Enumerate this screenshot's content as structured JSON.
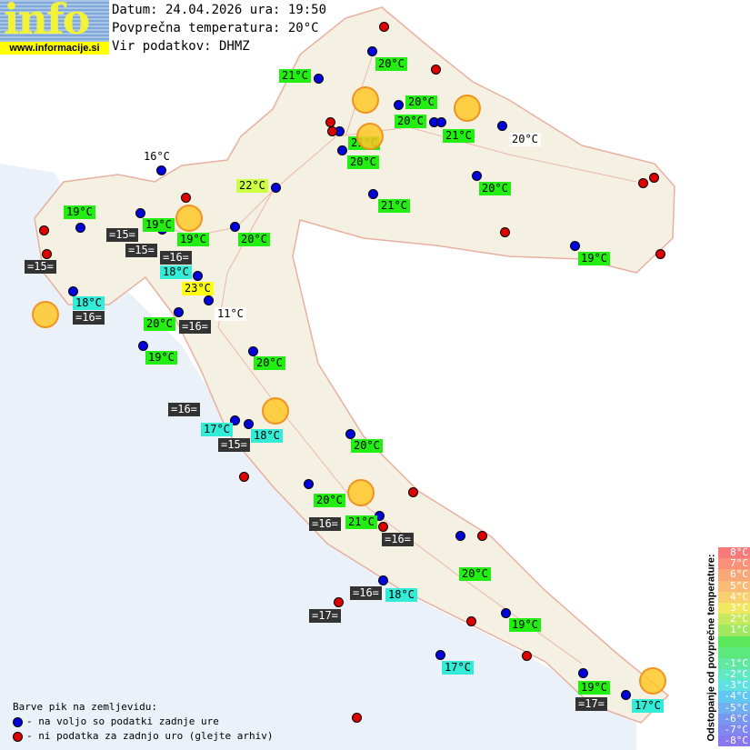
{
  "logo": {
    "word": "info",
    "url": "www.informacije.si"
  },
  "header": {
    "date_line": "Datum: 24.04.2026 ura: 19:50",
    "avg_line": "Povprečna temperatura: 20°C",
    "source_line": "Vir podatkov: DHMZ"
  },
  "colors": {
    "green": "#22ee11",
    "cyan": "#33ecd8",
    "yellow": "#ffff11",
    "archive": "#333333",
    "dot_blue": "#0000dd",
    "dot_red": "#dd0000",
    "sun": "#ffc828"
  },
  "stations": [
    {
      "label": "21°C",
      "kind": "green"
    },
    {
      "label": "20°C",
      "kind": "green"
    },
    {
      "label": "20°C",
      "kind": "green"
    },
    {
      "label": "20°C",
      "kind": "green"
    },
    {
      "label": "21°C",
      "kind": "green"
    },
    {
      "label": "21°C",
      "kind": "green"
    },
    {
      "label": "20°C",
      "kind": "green"
    },
    {
      "label": "20°C",
      "kind": "plain"
    },
    {
      "label": "16°C",
      "kind": "plain"
    },
    {
      "label": "22°C",
      "kind": "lime"
    },
    {
      "label": "21°C",
      "kind": "green"
    },
    {
      "label": "20°C",
      "kind": "green"
    },
    {
      "label": "19°C",
      "kind": "green"
    },
    {
      "label": "19°C",
      "kind": "green"
    },
    {
      "label": "=15=",
      "kind": "dark"
    },
    {
      "label": "=15=",
      "kind": "dark"
    },
    {
      "label": "19°C",
      "kind": "green"
    },
    {
      "label": "18°C",
      "kind": "cyan"
    },
    {
      "label": "=16=",
      "kind": "dark"
    },
    {
      "label": "20°C",
      "kind": "green"
    },
    {
      "label": "=15=",
      "kind": "dark"
    },
    {
      "label": "19°C",
      "kind": "green"
    },
    {
      "label": "23°C",
      "kind": "yellow"
    },
    {
      "label": "18°C",
      "kind": "cyan"
    },
    {
      "label": "=16=",
      "kind": "dark"
    },
    {
      "label": "11°C",
      "kind": "plain"
    },
    {
      "label": "20°C",
      "kind": "green"
    },
    {
      "label": "=16=",
      "kind": "dark"
    },
    {
      "label": "19°C",
      "kind": "green"
    },
    {
      "label": "20°C",
      "kind": "green"
    },
    {
      "label": "=16=",
      "kind": "dark"
    },
    {
      "label": "17°C",
      "kind": "cyan"
    },
    {
      "label": "18°C",
      "kind": "cyan"
    },
    {
      "label": "=15=",
      "kind": "dark"
    },
    {
      "label": "20°C",
      "kind": "green"
    },
    {
      "label": "20°C",
      "kind": "green"
    },
    {
      "label": "=16=",
      "kind": "dark"
    },
    {
      "label": "21°C",
      "kind": "green"
    },
    {
      "label": "=16=",
      "kind": "dark"
    },
    {
      "label": "20°C",
      "kind": "green"
    },
    {
      "label": "=16=",
      "kind": "dark"
    },
    {
      "label": "18°C",
      "kind": "cyan"
    },
    {
      "label": "=17=",
      "kind": "dark"
    },
    {
      "label": "19°C",
      "kind": "green"
    },
    {
      "label": "17°C",
      "kind": "cyan"
    },
    {
      "label": "19°C",
      "kind": "green"
    },
    {
      "label": "=17=",
      "kind": "dark"
    },
    {
      "label": "17°C",
      "kind": "cyan"
    }
  ],
  "weather_icons": [
    "sun-icon",
    "sun-icon",
    "sun-icon",
    "sun-icon",
    "sun-icon",
    "sun-icon",
    "sun-icon",
    "sun-icon"
  ],
  "legend": {
    "title": "Barve pik na zemljevidu:",
    "blue_text": "- na voljo so podatki zadnje ure",
    "red_text": "- ni podatka za zadnjo uro (glejte arhiv)"
  },
  "scale": {
    "title": "Odstopanje od povprečne temperature:",
    "steps": [
      {
        "label": "8°C",
        "color": "#f87a7a"
      },
      {
        "label": "7°C",
        "color": "#f8907a"
      },
      {
        "label": "6°C",
        "color": "#f8a878"
      },
      {
        "label": "5°C",
        "color": "#f8bc78"
      },
      {
        "label": "4°C",
        "color": "#f8d070"
      },
      {
        "label": "3°C",
        "color": "#f0e860"
      },
      {
        "label": "2°C",
        "color": "#c8e860"
      },
      {
        "label": "1°C",
        "color": "#a0e860"
      },
      {
        "label": "",
        "color": "#5ce85c"
      },
      {
        "label": "",
        "color": "#5ce87c"
      },
      {
        "label": "-1°C",
        "color": "#60e8a0"
      },
      {
        "label": "-2°C",
        "color": "#60e8c0"
      },
      {
        "label": "-3°C",
        "color": "#60e0e0"
      },
      {
        "label": "-4°C",
        "color": "#60c8f0"
      },
      {
        "label": "-5°C",
        "color": "#70b0f0"
      },
      {
        "label": "-6°C",
        "color": "#7898f0"
      },
      {
        "label": "-7°C",
        "color": "#8088f0"
      },
      {
        "label": "-8°C",
        "color": "#8878f0"
      }
    ]
  }
}
